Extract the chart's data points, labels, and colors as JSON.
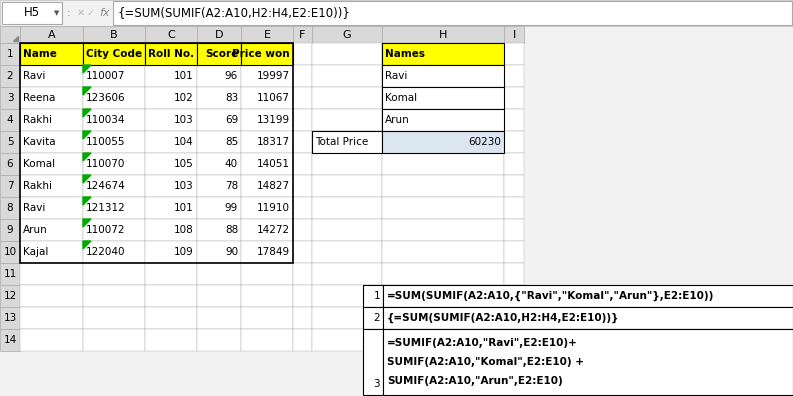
{
  "formula_bar_cell": "H5",
  "formula_bar_text": "{=SUM(SUMIF(A2:A10,H2:H4,E2:E10))}",
  "col_headers": [
    "A",
    "B",
    "C",
    "D",
    "E",
    "F",
    "G",
    "H",
    "I"
  ],
  "table_data": [
    [
      "Name",
      "City Code",
      "Roll No.",
      "Score",
      "Price won"
    ],
    [
      "Ravi",
      "110007",
      "101",
      "96",
      "19997"
    ],
    [
      "Reena",
      "123606",
      "102",
      "83",
      "11067"
    ],
    [
      "Rakhi",
      "110034",
      "103",
      "69",
      "13199"
    ],
    [
      "Kavita",
      "110055",
      "104",
      "85",
      "18317"
    ],
    [
      "Komal",
      "110070",
      "105",
      "40",
      "14051"
    ],
    [
      "Rakhi",
      "124674",
      "103",
      "78",
      "14827"
    ],
    [
      "Ravi",
      "121312",
      "101",
      "99",
      "11910"
    ],
    [
      "Arun",
      "110072",
      "108",
      "88",
      "14272"
    ],
    [
      "Kajal",
      "122040",
      "109",
      "90",
      "17849"
    ]
  ],
  "right_table_header": "Names",
  "right_table_data": [
    "Ravi",
    "Komal",
    "Arun"
  ],
  "total_price_label": "Total Price",
  "total_price_value": "60230",
  "formula1": "=SUM(SUMIF(A2:A10,{\"Ravi\",\"Komal\",\"Arun\"},E2:E10))",
  "formula2": "{=SUM(SUMIF(A2:A10,H2:H4,E2:E10))}",
  "formula3_lines": [
    "=SUMIF(A2:A10,\"Ravi\",E2:E10)+",
    "SUMIF(A2:A10,\"Komal\",E2:E10) +",
    "SUMIF(A2:A10,\"Arun\",E2:E10)"
  ],
  "header_bg": "#FFFF00",
  "total_price_bg": "#DCE6F1",
  "row_num_bg": "#D9D9D9",
  "col_hdr_bg": "#D9D9D9",
  "formula_num_bg": "#FFFFFF",
  "formula_text_bg": "#FFFFFF",
  "bg_color": "#F2F2F2"
}
